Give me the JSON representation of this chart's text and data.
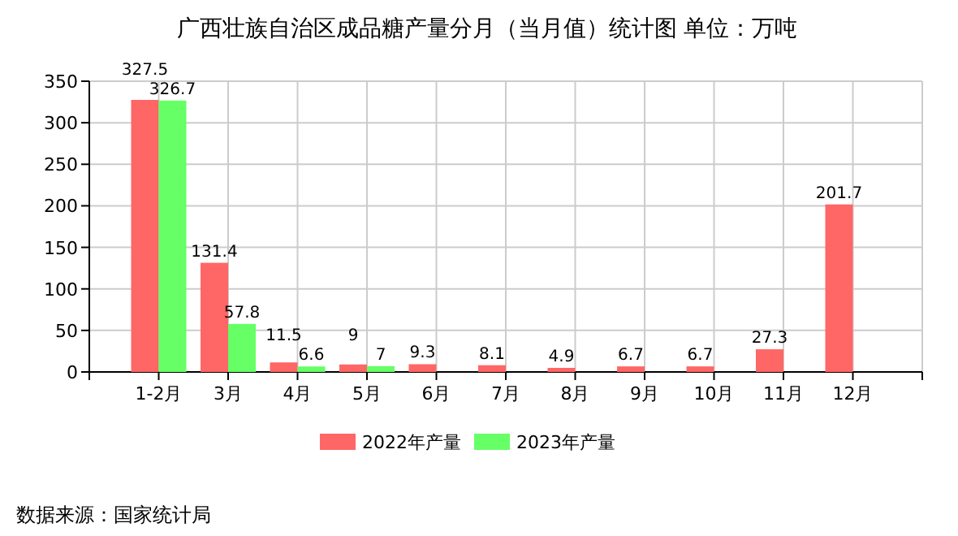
{
  "chart_data": {
    "type": "bar",
    "title": "广西壮族自治区成品糖产量分月（当月值）统计图 单位：万吨",
    "categories": [
      "1-2月",
      "3月",
      "4月",
      "5月",
      "6月",
      "7月",
      "8月",
      "9月",
      "10月",
      "11月",
      "12月"
    ],
    "series": [
      {
        "name": "2022年产量",
        "color": "#ff6666",
        "values": [
          327.5,
          131.4,
          11.5,
          9,
          9.3,
          8.1,
          4.9,
          6.7,
          6.7,
          27.3,
          201.7
        ]
      },
      {
        "name": "2023年产量",
        "color": "#66ff66",
        "values": [
          326.7,
          57.8,
          6.6,
          7,
          null,
          null,
          null,
          null,
          null,
          null,
          null
        ]
      }
    ],
    "ylim": [
      0,
      350
    ],
    "yticks": [
      0,
      50,
      100,
      150,
      200,
      250,
      300,
      350
    ],
    "grid": true,
    "legend": "bottom",
    "data_labels": true,
    "annotations": [
      "数据来源：国家统计局"
    ]
  }
}
